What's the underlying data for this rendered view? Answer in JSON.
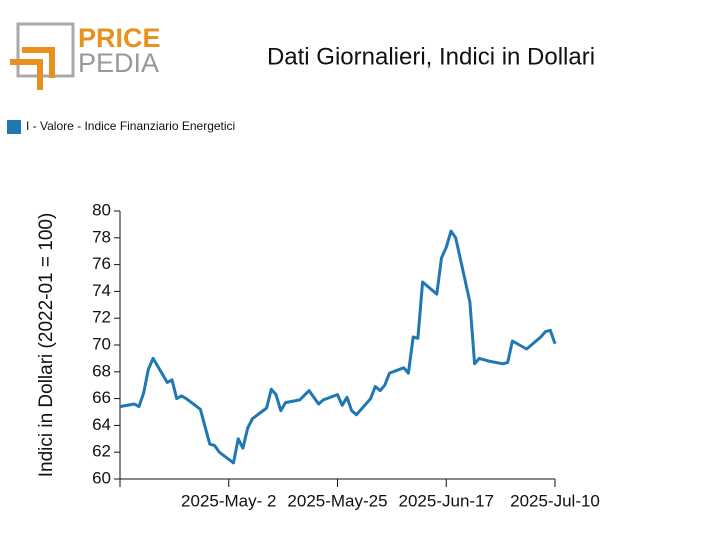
{
  "logo": {
    "top": "PRICE",
    "bottom": "PEDIA"
  },
  "chart_data": {
    "type": "line",
    "title": "Dati Giornalieri, Indici in Dollari",
    "ylabel": "Indici in Dollari (2022-01 = 100)",
    "x": [
      "2025-04-09",
      "2025-04-12",
      "2025-04-13",
      "2025-04-14",
      "2025-04-15",
      "2025-04-16",
      "2025-04-19",
      "2025-04-20",
      "2025-04-21",
      "2025-04-22",
      "2025-04-23",
      "2025-04-26",
      "2025-04-28",
      "2025-04-29",
      "2025-04-30",
      "2025-05-03",
      "2025-05-04",
      "2025-05-05",
      "2025-05-06",
      "2025-05-07",
      "2025-05-10",
      "2025-05-11",
      "2025-05-12",
      "2025-05-13",
      "2025-05-14",
      "2025-05-17",
      "2025-05-19",
      "2025-05-21",
      "2025-05-22",
      "2025-05-25",
      "2025-05-26",
      "2025-05-27",
      "2025-05-28",
      "2025-05-29",
      "2025-06-01",
      "2025-06-02",
      "2025-06-03",
      "2025-06-04",
      "2025-06-05",
      "2025-06-08",
      "2025-06-09",
      "2025-06-10",
      "2025-06-11",
      "2025-06-12",
      "2025-06-15",
      "2025-06-16",
      "2025-06-17",
      "2025-06-18",
      "2025-06-19",
      "2025-06-22",
      "2025-06-23",
      "2025-06-24",
      "2025-06-26",
      "2025-06-29",
      "2025-06-30",
      "2025-07-01",
      "2025-07-04",
      "2025-07-07",
      "2025-07-08",
      "2025-07-09",
      "2025-07-10"
    ],
    "series": [
      {
        "name": "I - Valore - Indice Finanziario Energetici",
        "color": "#1f77b4",
        "values": [
          65.4,
          65.6,
          65.4,
          66.4,
          68.2,
          69.0,
          67.2,
          67.4,
          66.0,
          66.2,
          66.0,
          65.2,
          62.6,
          62.5,
          62.0,
          61.2,
          63.0,
          62.3,
          63.8,
          64.5,
          65.3,
          66.7,
          66.3,
          65.1,
          65.7,
          65.9,
          66.6,
          65.6,
          65.9,
          66.3,
          65.5,
          66.1,
          65.1,
          64.8,
          66.0,
          66.9,
          66.6,
          67.0,
          67.9,
          68.3,
          67.9,
          70.6,
          70.5,
          74.7,
          73.8,
          76.5,
          77.3,
          78.5,
          78.0,
          73.2,
          68.6,
          69.0,
          68.8,
          68.6,
          68.7,
          70.3,
          69.7,
          70.6,
          71.0,
          71.1,
          70.1
        ]
      }
    ],
    "xlim": [
      "2025-04-09",
      "2025-07-10"
    ],
    "xticks": [
      {
        "value": "2025-05-02",
        "label": "2025-May- 2"
      },
      {
        "value": "2025-05-25",
        "label": "2025-May-25"
      },
      {
        "value": "2025-06-17",
        "label": "2025-Jun-17"
      },
      {
        "value": "2025-07-10",
        "label": "2025-Jul-10"
      }
    ],
    "ylim": [
      60,
      80
    ],
    "yticks": [
      60,
      62,
      64,
      66,
      68,
      70,
      72,
      74,
      76,
      78,
      80
    ],
    "legend": "top-left"
  }
}
